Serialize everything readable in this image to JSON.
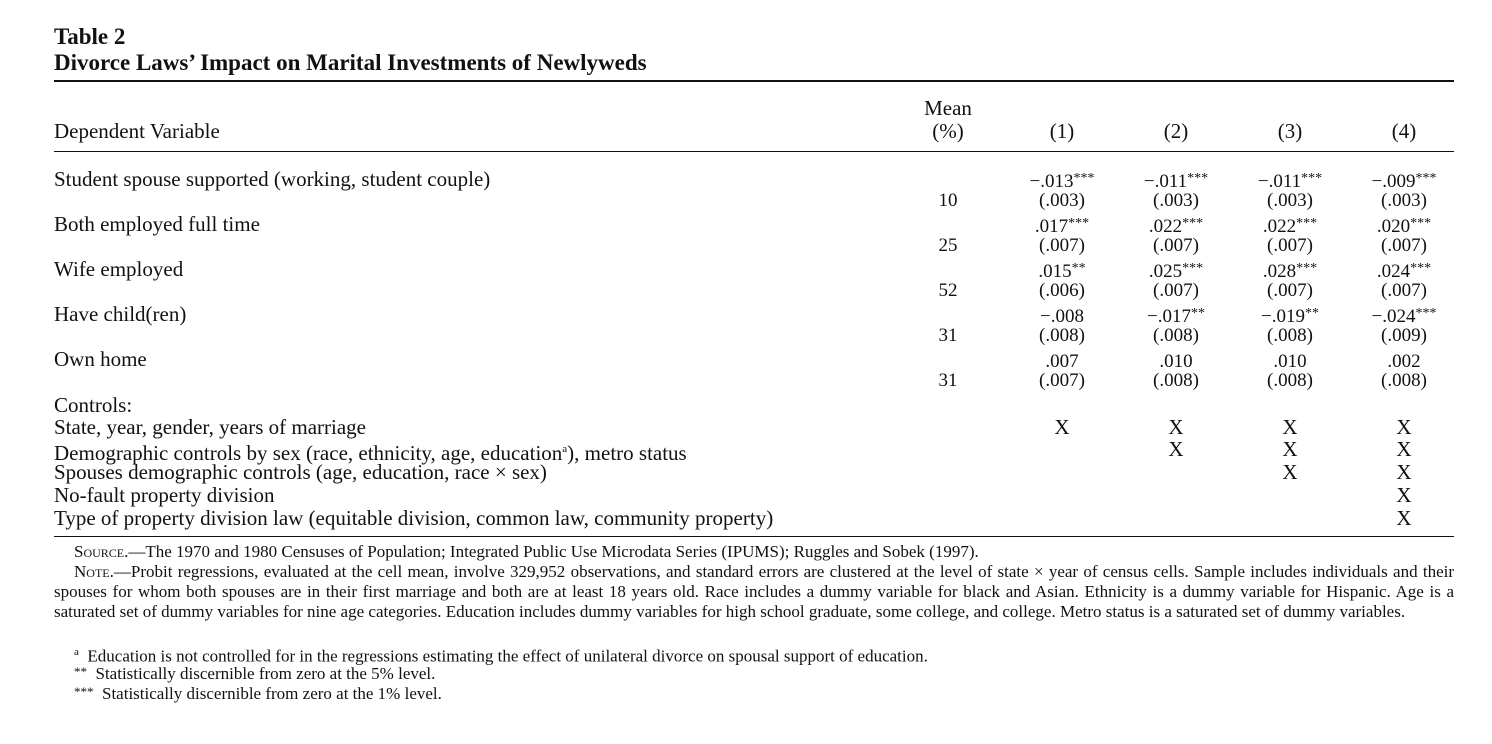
{
  "table": {
    "number": "Table 2",
    "title": "Divorce Laws’ Impact on Marital Investments of Newlyweds",
    "header": {
      "dep_var": "Dependent Variable",
      "mean_line1": "Mean",
      "mean_line2": "(%)",
      "cols": [
        "(1)",
        "(2)",
        "(3)",
        "(4)"
      ]
    },
    "rows": [
      {
        "label": "Student spouse supported (working, student couple)",
        "mean": "10",
        "coef": [
          "−.013",
          "−.011",
          "−.011",
          "−.009"
        ],
        "stars": [
          "***",
          "***",
          "***",
          "***"
        ],
        "se": [
          "(.003)",
          "(.003)",
          "(.003)",
          "(.003)"
        ]
      },
      {
        "label": "Both employed full time",
        "mean": "25",
        "coef": [
          ".017",
          ".022",
          ".022",
          ".020"
        ],
        "stars": [
          "***",
          "***",
          "***",
          "***"
        ],
        "se": [
          "(.007)",
          "(.007)",
          "(.007)",
          "(.007)"
        ]
      },
      {
        "label": "Wife employed",
        "mean": "52",
        "coef": [
          ".015",
          ".025",
          ".028",
          ".024"
        ],
        "stars": [
          "**",
          "***",
          "***",
          "***"
        ],
        "se": [
          "(.006)",
          "(.007)",
          "(.007)",
          "(.007)"
        ]
      },
      {
        "label": "Have child(ren)",
        "mean": "31",
        "coef": [
          "−.008",
          "−.017",
          "−.019",
          "−.024"
        ],
        "stars": [
          "",
          "**",
          "**",
          "***"
        ],
        "se": [
          "(.008)",
          "(.008)",
          "(.008)",
          "(.009)"
        ]
      },
      {
        "label": "Own home",
        "mean": "31",
        "coef": [
          ".007",
          ".010",
          ".010",
          ".002"
        ],
        "stars": [
          "",
          "",
          "",
          ""
        ],
        "se": [
          "(.007)",
          "(.008)",
          "(.008)",
          "(.008)"
        ]
      }
    ],
    "controls_heading": "Controls:",
    "controls": [
      {
        "label": "State, year, gender, years of marriage",
        "marks": [
          "X",
          "X",
          "X",
          "X"
        ]
      },
      {
        "label_pre": "Demographic controls by sex (race, ethnicity, age, education",
        "label_sup": "a",
        "label_post": "), metro status",
        "marks": [
          "",
          "X",
          "X",
          "X"
        ]
      },
      {
        "label": "Spouses demographic controls (age, education, race × sex)",
        "marks": [
          "",
          "",
          "X",
          "X"
        ]
      },
      {
        "label": "No-fault property division",
        "marks": [
          "",
          "",
          "",
          "X"
        ]
      },
      {
        "label": "Type of property division law (equitable division, common law, community property)",
        "marks": [
          "",
          "",
          "",
          "X"
        ]
      }
    ]
  },
  "notes": {
    "source_label": "Source.",
    "source_text": "—The 1970 and 1980 Censuses of Population; Integrated Public Use Microdata Series (IPUMS); Ruggles and Sobek (1997).",
    "note_label": "Note.",
    "note_text": "—Probit regressions, evaluated at the cell mean, involve 329,952 observations, and standard errors are clustered at the level of state × year of census cells. Sample includes individuals and their spouses for whom both spouses are in their first marriage and both are at least 18 years old. Race includes a dummy variable for black and Asian. Ethnicity is a dummy variable for Hispanic. Age is a saturated set of dummy variables for nine age categories. Education includes dummy variables for high school graduate, some college, and college. Metro status is a saturated set of dummy variables.",
    "footnotes": [
      {
        "mark": "a",
        "text": "Education is not controlled for in the regressions estimating the effect of unilateral divorce on spousal support of education."
      },
      {
        "mark": "**",
        "text": "Statistically discernible from zero at the 5% level."
      },
      {
        "mark": "***",
        "text": "Statistically discernible from zero at the 1% level."
      }
    ]
  }
}
